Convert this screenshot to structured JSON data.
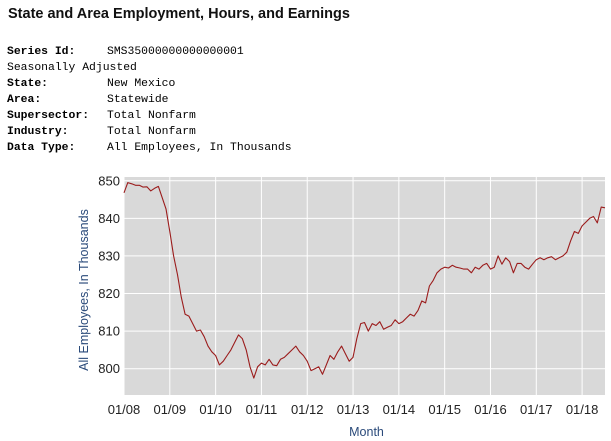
{
  "page": {
    "title": "State and Area Employment, Hours, and Earnings"
  },
  "meta": [
    {
      "key": "Series Id:",
      "value": "SMS35000000000000001",
      "bold": true
    },
    {
      "key": "Seasonally Adjusted",
      "value": "",
      "bold": false
    },
    {
      "key": "State:",
      "value": "New Mexico",
      "bold": true
    },
    {
      "key": "Area:",
      "value": "Statewide",
      "bold": true
    },
    {
      "key": "Supersector:",
      "value": "Total Nonfarm",
      "bold": true
    },
    {
      "key": "Industry:",
      "value": "Total Nonfarm",
      "bold": true
    },
    {
      "key": "Data Type:",
      "value": "All Employees, In Thousands",
      "bold": true
    }
  ],
  "chart_data": {
    "type": "line",
    "xlabel": "Month",
    "ylabel": "All Employees, In Thousands",
    "ylim": [
      793,
      851
    ],
    "xlim": [
      2008.0,
      2018.5
    ],
    "yticks": [
      800,
      810,
      820,
      830,
      840,
      850
    ],
    "xtick_labels": [
      "01/08",
      "01/09",
      "01/10",
      "01/11",
      "01/12",
      "01/13",
      "01/14",
      "01/15",
      "01/16",
      "01/17",
      "01/18"
    ],
    "xtick_positions": [
      2008,
      2009,
      2010,
      2011,
      2012,
      2013,
      2014,
      2015,
      2016,
      2017,
      2018
    ],
    "grid": true,
    "colors": {
      "plot_bg": "#d9d9d9",
      "line": "#9b1c1c",
      "grid": "#ffffff",
      "axis_label": "#2a4a7a"
    },
    "series": [
      {
        "x": [
          2008.0,
          2008.083,
          2008.167,
          2008.25,
          2008.333,
          2008.417,
          2008.5,
          2008.583,
          2008.667,
          2008.75,
          2008.833,
          2008.917,
          2009.0,
          2009.083,
          2009.167,
          2009.25,
          2009.333,
          2009.417,
          2009.5,
          2009.583,
          2009.667,
          2009.75,
          2009.833,
          2009.917,
          2010.0,
          2010.083,
          2010.167,
          2010.25,
          2010.333,
          2010.417,
          2010.5,
          2010.583,
          2010.667,
          2010.75,
          2010.833,
          2010.917,
          2011.0,
          2011.083,
          2011.167,
          2011.25,
          2011.333,
          2011.417,
          2011.5,
          2011.583,
          2011.667,
          2011.75,
          2011.833,
          2011.917,
          2012.0,
          2012.083,
          2012.167,
          2012.25,
          2012.333,
          2012.417,
          2012.5,
          2012.583,
          2012.667,
          2012.75,
          2012.833,
          2012.917,
          2013.0,
          2013.083,
          2013.167,
          2013.25,
          2013.333,
          2013.417,
          2013.5,
          2013.583,
          2013.667,
          2013.75,
          2013.833,
          2013.917,
          2014.0,
          2014.083,
          2014.167,
          2014.25,
          2014.333,
          2014.417,
          2014.5,
          2014.583,
          2014.667,
          2014.75,
          2014.833,
          2014.917,
          2015.0,
          2015.083,
          2015.167,
          2015.25,
          2015.333,
          2015.417,
          2015.5,
          2015.583,
          2015.667,
          2015.75,
          2015.833,
          2015.917,
          2016.0,
          2016.083,
          2016.167,
          2016.25,
          2016.333,
          2016.417,
          2016.5,
          2016.583,
          2016.667,
          2016.75,
          2016.833,
          2016.917,
          2017.0,
          2017.083,
          2017.167,
          2017.25,
          2017.333,
          2017.417,
          2017.5,
          2017.583,
          2017.667,
          2017.75,
          2017.833,
          2017.917,
          2018.0,
          2018.083,
          2018.167,
          2018.25,
          2018.333,
          2018.417,
          2018.5
        ],
        "values": [
          846.8,
          849.5,
          849.2,
          848.8,
          848.8,
          848.3,
          848.4,
          847.3,
          848.0,
          848.5,
          845.5,
          842.5,
          836.5,
          830.0,
          825.0,
          819.0,
          814.5,
          814.0,
          812.0,
          810.0,
          810.3,
          808.5,
          806.0,
          804.5,
          803.5,
          801.0,
          802.0,
          803.5,
          805.0,
          807.0,
          809.0,
          808.0,
          805.0,
          800.5,
          797.5,
          800.5,
          801.5,
          801.0,
          802.5,
          801.0,
          800.8,
          802.5,
          803.0,
          804.0,
          805.0,
          806.0,
          804.5,
          803.5,
          802.0,
          799.5,
          800.0,
          800.5,
          798.5,
          801.0,
          803.5,
          802.5,
          804.5,
          806.0,
          804.0,
          802.0,
          803.0,
          808.0,
          812.0,
          812.3,
          810.0,
          812.0,
          811.5,
          812.5,
          810.5,
          811.0,
          811.5,
          813.0,
          812.0,
          812.5,
          813.5,
          814.5,
          814.0,
          815.5,
          818.0,
          817.5,
          822.0,
          823.5,
          825.5,
          826.5,
          827.0,
          826.8,
          827.5,
          827.0,
          826.8,
          826.5,
          826.5,
          825.5,
          827.0,
          826.5,
          827.5,
          828.0,
          826.5,
          827.0,
          830.0,
          827.8,
          829.5,
          828.5,
          825.5,
          828.0,
          828.0,
          827.0,
          826.5,
          827.8,
          829.0,
          829.5,
          829.0,
          829.5,
          829.8,
          829.0,
          829.5,
          830.0,
          831.0,
          834.0,
          836.5,
          836.0,
          838.0,
          839.0,
          840.0,
          840.5,
          838.8,
          843.0,
          842.8
        ]
      }
    ]
  }
}
